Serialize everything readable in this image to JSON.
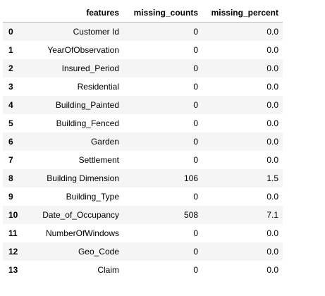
{
  "table": {
    "columns": [
      "features",
      "missing_counts",
      "missing_percent"
    ],
    "rows": [
      {
        "index": "0",
        "features": "Customer Id",
        "missing_counts": "0",
        "missing_percent": "0.0"
      },
      {
        "index": "1",
        "features": "YearOfObservation",
        "missing_counts": "0",
        "missing_percent": "0.0"
      },
      {
        "index": "2",
        "features": "Insured_Period",
        "missing_counts": "0",
        "missing_percent": "0.0"
      },
      {
        "index": "3",
        "features": "Residential",
        "missing_counts": "0",
        "missing_percent": "0.0"
      },
      {
        "index": "4",
        "features": "Building_Painted",
        "missing_counts": "0",
        "missing_percent": "0.0"
      },
      {
        "index": "5",
        "features": "Building_Fenced",
        "missing_counts": "0",
        "missing_percent": "0.0"
      },
      {
        "index": "6",
        "features": "Garden",
        "missing_counts": "0",
        "missing_percent": "0.0"
      },
      {
        "index": "7",
        "features": "Settlement",
        "missing_counts": "0",
        "missing_percent": "0.0"
      },
      {
        "index": "8",
        "features": "Building Dimension",
        "missing_counts": "106",
        "missing_percent": "1.5"
      },
      {
        "index": "9",
        "features": "Building_Type",
        "missing_counts": "0",
        "missing_percent": "0.0"
      },
      {
        "index": "10",
        "features": "Date_of_Occupancy",
        "missing_counts": "508",
        "missing_percent": "7.1"
      },
      {
        "index": "11",
        "features": "NumberOfWindows",
        "missing_counts": "0",
        "missing_percent": "0.0"
      },
      {
        "index": "12",
        "features": "Geo_Code",
        "missing_counts": "0",
        "missing_percent": "0.0"
      },
      {
        "index": "13",
        "features": "Claim",
        "missing_counts": "0",
        "missing_percent": "0.0"
      }
    ]
  }
}
